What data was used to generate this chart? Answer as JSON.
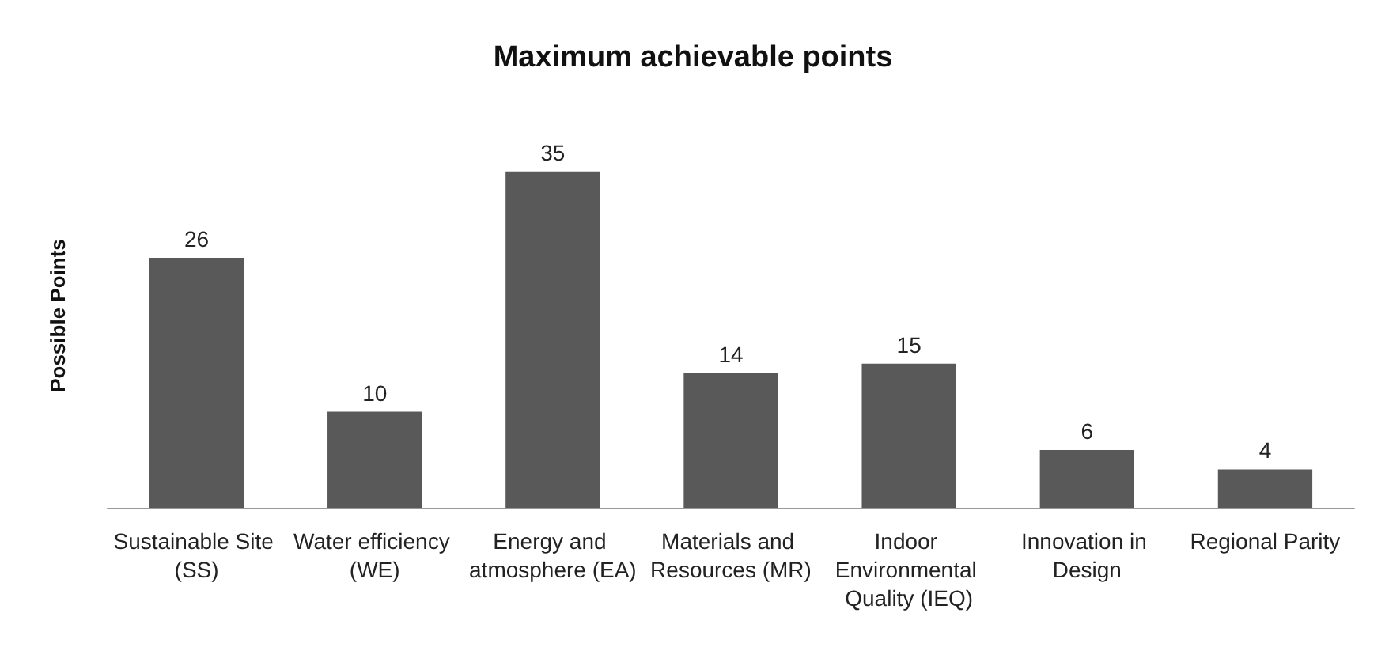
{
  "chart_data": {
    "type": "bar",
    "title": "Maximum achievable points",
    "ylabel": "Possible Points",
    "categories": [
      "Sustainable Site (SS)",
      "Water efficiency (WE)",
      "Energy and atmosphere (EA)",
      "Materials and Resources (MR)",
      "Indoor Environmental Quality (IEQ)",
      "Innovation in Design",
      "Regional Parity"
    ],
    "values": [
      26,
      10,
      35,
      14,
      15,
      6,
      4
    ],
    "color": "#595959",
    "data_labels": true,
    "grid": false
  }
}
